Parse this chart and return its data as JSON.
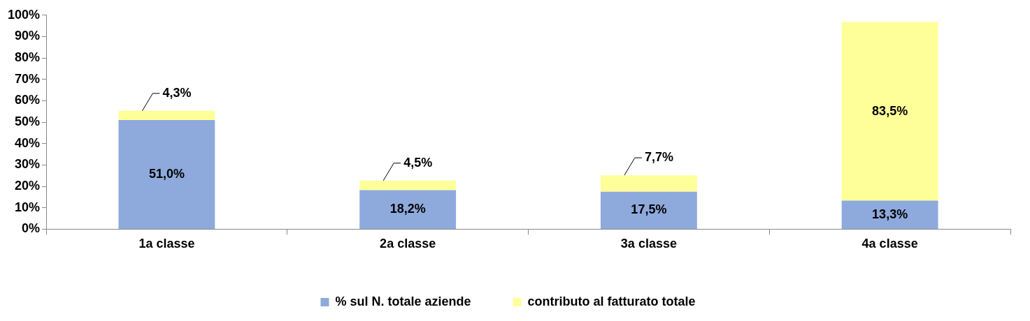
{
  "chart_data": {
    "type": "bar",
    "stacked": true,
    "categories": [
      "1a classe",
      "2a classe",
      "3a classe",
      "4a classe"
    ],
    "series": [
      {
        "name": "% sul N. totale aziende",
        "color": "#8eaadc",
        "values": [
          51.0,
          18.2,
          17.5,
          13.3
        ],
        "value_labels": [
          "51,0%",
          "18,2%",
          "17,5%",
          "13,3%"
        ]
      },
      {
        "name": "contributo al fatturato totale",
        "color": "#ffff99",
        "values": [
          4.3,
          4.5,
          7.7,
          83.5
        ],
        "value_labels": [
          "4,3%",
          "4,5%",
          "7,7%",
          "83,5%"
        ]
      }
    ],
    "ylim": [
      0,
      100
    ],
    "yticks": [
      {
        "value": 0,
        "label": "0%"
      },
      {
        "value": 10,
        "label": "10%"
      },
      {
        "value": 20,
        "label": "20%"
      },
      {
        "value": 30,
        "label": "30%"
      },
      {
        "value": 40,
        "label": "40%"
      },
      {
        "value": 50,
        "label": "50%"
      },
      {
        "value": 60,
        "label": "60%"
      },
      {
        "value": 70,
        "label": "70%"
      },
      {
        "value": 80,
        "label": "80%"
      },
      {
        "value": 90,
        "label": "90%"
      },
      {
        "value": 100,
        "label": "100%"
      }
    ],
    "legend": "bottom"
  }
}
